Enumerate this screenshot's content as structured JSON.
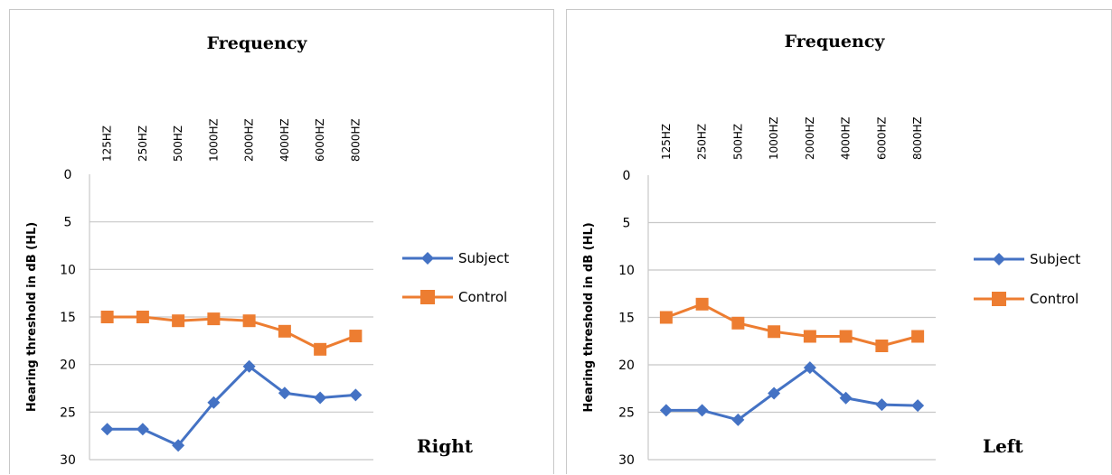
{
  "chart_data": [
    {
      "type": "line",
      "title": "Frequency",
      "ylabel": "Hearing threshold in dB (HL)",
      "xlabel": "",
      "categories": [
        "125HZ",
        "250HZ",
        "500HZ",
        "1000HZ",
        "2000HZ",
        "4000HZ",
        "6000HZ",
        "8000HZ"
      ],
      "y_ticks": [
        "0",
        "5",
        "10",
        "15",
        "20",
        "25",
        "30"
      ],
      "ylim": [
        0,
        30
      ],
      "y_axis_inverted": true,
      "x_axis_position": "top",
      "grid": true,
      "legend_position": "right",
      "annotation": "Right",
      "series": [
        {
          "name": "Subject",
          "color": "#4472C4",
          "marker": "diamond",
          "values": [
            26.8,
            26.8,
            28.5,
            24.0,
            20.2,
            23.0,
            23.5,
            23.2
          ]
        },
        {
          "name": "Control",
          "color": "#ED7D31",
          "marker": "square",
          "values": [
            15.0,
            15.0,
            15.4,
            15.2,
            15.4,
            16.5,
            18.4,
            17.0
          ]
        }
      ]
    },
    {
      "type": "line",
      "title": "Frequency",
      "ylabel": "Hearing threshold in dB (HL)",
      "xlabel": "",
      "categories": [
        "125HZ",
        "250HZ",
        "500HZ",
        "1000HZ",
        "2000HZ",
        "4000HZ",
        "6000HZ",
        "8000HZ"
      ],
      "y_ticks": [
        "0",
        "5",
        "10",
        "15",
        "20",
        "25",
        "30"
      ],
      "ylim": [
        0,
        30
      ],
      "y_axis_inverted": true,
      "x_axis_position": "top",
      "grid": true,
      "legend_position": "right",
      "annotation": "Left",
      "series": [
        {
          "name": "Subject",
          "color": "#4472C4",
          "marker": "diamond",
          "values": [
            24.8,
            24.8,
            25.8,
            23.0,
            20.3,
            23.5,
            24.2,
            24.3
          ]
        },
        {
          "name": "Control",
          "color": "#ED7D31",
          "marker": "square",
          "values": [
            15.0,
            13.6,
            15.6,
            16.5,
            17.0,
            17.0,
            18.0,
            17.0
          ]
        }
      ]
    }
  ]
}
